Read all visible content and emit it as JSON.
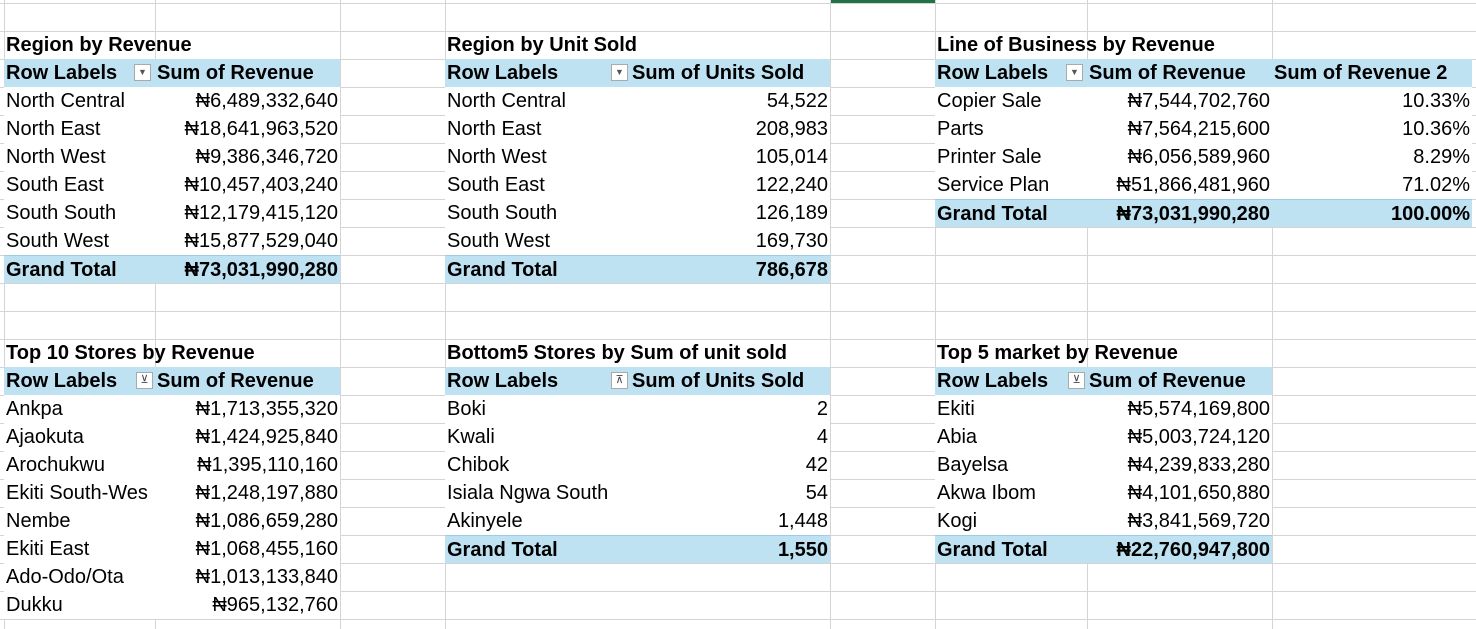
{
  "pivots": {
    "region_revenue": {
      "title": "Region by Revenue",
      "headers": [
        "Row Labels",
        "Sum of Revenue"
      ],
      "rows": [
        [
          "North Central",
          "₦6,489,332,640"
        ],
        [
          "North East",
          "₦18,641,963,520"
        ],
        [
          "North West",
          "₦9,386,346,720"
        ],
        [
          "South East",
          "₦10,457,403,240"
        ],
        [
          "South South",
          "₦12,179,415,120"
        ],
        [
          "South West",
          "₦15,877,529,040"
        ]
      ],
      "total": [
        "Grand Total",
        "₦73,031,990,280"
      ],
      "filter_icon": "chevron-down-icon"
    },
    "region_units": {
      "title": "Region by Unit Sold",
      "headers": [
        "Row Labels",
        "Sum of Units Sold"
      ],
      "rows": [
        [
          "North Central",
          "54,522"
        ],
        [
          "North East",
          "208,983"
        ],
        [
          "North West",
          "105,014"
        ],
        [
          "South East",
          "122,240"
        ],
        [
          "South South",
          "126,189"
        ],
        [
          "South West",
          "169,730"
        ]
      ],
      "total": [
        "Grand Total",
        "786,678"
      ],
      "filter_icon": "chevron-down-icon"
    },
    "lob_revenue": {
      "title": "Line of Business by Revenue",
      "headers": [
        "Row Labels",
        "Sum of Revenue",
        "Sum of Revenue 2"
      ],
      "rows": [
        [
          "Copier Sale",
          "₦7,544,702,760",
          "10.33%"
        ],
        [
          "Parts",
          "₦7,564,215,600",
          "10.36%"
        ],
        [
          "Printer Sale",
          "₦6,056,589,960",
          "8.29%"
        ],
        [
          "Service Plan",
          "₦51,866,481,960",
          "71.02%"
        ]
      ],
      "total": [
        "Grand Total",
        "₦73,031,990,280",
        "100.00%"
      ],
      "filter_icon": "chevron-down-icon"
    },
    "top10_stores": {
      "title": "Top 10 Stores by Revenue",
      "headers": [
        "Row Labels",
        "Sum of Revenue"
      ],
      "rows": [
        [
          "Ankpa",
          "₦1,713,355,320"
        ],
        [
          "Ajaokuta",
          "₦1,424,925,840"
        ],
        [
          "Arochukwu",
          "₦1,395,110,160"
        ],
        [
          "Ekiti South-Wes",
          "₦1,248,197,880"
        ],
        [
          "Nembe",
          "₦1,086,659,280"
        ],
        [
          "Ekiti East",
          "₦1,068,455,160"
        ],
        [
          "Ado-Odo/Ota",
          "₦1,013,133,840"
        ],
        [
          "Dukku",
          "₦965,132,760"
        ]
      ],
      "filter_icon": "sort-filter-icon"
    },
    "bottom5_stores": {
      "title": "Bottom5 Stores by Sum of unit sold",
      "headers": [
        "Row Labels",
        "Sum of Units Sold"
      ],
      "rows": [
        [
          "Boki",
          "2"
        ],
        [
          "Kwali",
          "4"
        ],
        [
          "Chibok",
          "42"
        ],
        [
          "Isiala Ngwa South",
          "54"
        ],
        [
          "Akinyele",
          "1,448"
        ]
      ],
      "total": [
        "Grand Total",
        "1,550"
      ],
      "filter_icon": "sort-filter-icon"
    },
    "top5_market": {
      "title": "Top 5 market by Revenue",
      "headers": [
        "Row Labels",
        "Sum of Revenue"
      ],
      "rows": [
        [
          "Ekiti",
          "₦5,574,169,800"
        ],
        [
          "Abia",
          "₦5,003,724,120"
        ],
        [
          "Bayelsa",
          "₦4,239,833,280"
        ],
        [
          "Akwa Ibom",
          "₦4,101,650,880"
        ],
        [
          "Kogi",
          "₦3,841,569,720"
        ]
      ],
      "total": [
        "Grand Total",
        "₦22,760,947,800"
      ],
      "filter_icon": "sort-filter-icon"
    }
  },
  "colors": {
    "header_fill": "#bfe2f3",
    "gridline": "#d4d4d4",
    "selection": "#217346"
  }
}
